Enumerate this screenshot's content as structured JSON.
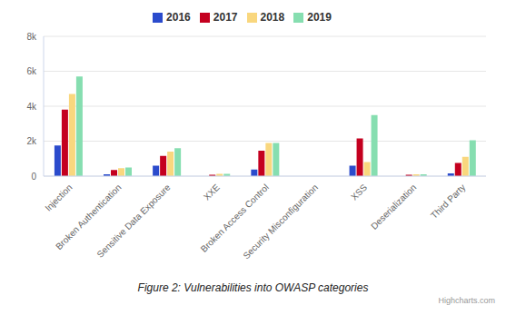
{
  "chart_data": {
    "type": "bar",
    "title": "Figure 2: Vulnerabilities into OWASP categories",
    "annotations": [
      "Highcharts.com"
    ],
    "categories": [
      "Injection",
      "Broken Authentication",
      "Sensitive Data Exposure",
      "XXE",
      "Broken Access Control",
      "Security Misconfiguration",
      "XSS",
      "Deserialization",
      "Third Party"
    ],
    "series": [
      {
        "name": "2016",
        "color": "#2b4bcc",
        "values": [
          1750,
          100,
          600,
          0,
          380,
          0,
          600,
          0,
          150
        ]
      },
      {
        "name": "2017",
        "color": "#c4001f",
        "values": [
          3800,
          350,
          1150,
          80,
          1450,
          0,
          2150,
          80,
          750
        ]
      },
      {
        "name": "2018",
        "color": "#f9d77e",
        "values": [
          4700,
          450,
          1400,
          130,
          1900,
          0,
          800,
          100,
          1100
        ]
      },
      {
        "name": "2019",
        "color": "#86deb0",
        "values": [
          5700,
          500,
          1600,
          130,
          1900,
          0,
          3500,
          100,
          2050
        ]
      }
    ],
    "ylim": [
      0,
      8000
    ],
    "yticks": [
      0,
      {
        "value": 2000,
        "label": "2k"
      },
      {
        "value": 4000,
        "label": "4k"
      },
      {
        "value": 6000,
        "label": "6k"
      },
      {
        "value": 8000,
        "label": "8k"
      }
    ],
    "grid": true,
    "legend": "top"
  }
}
